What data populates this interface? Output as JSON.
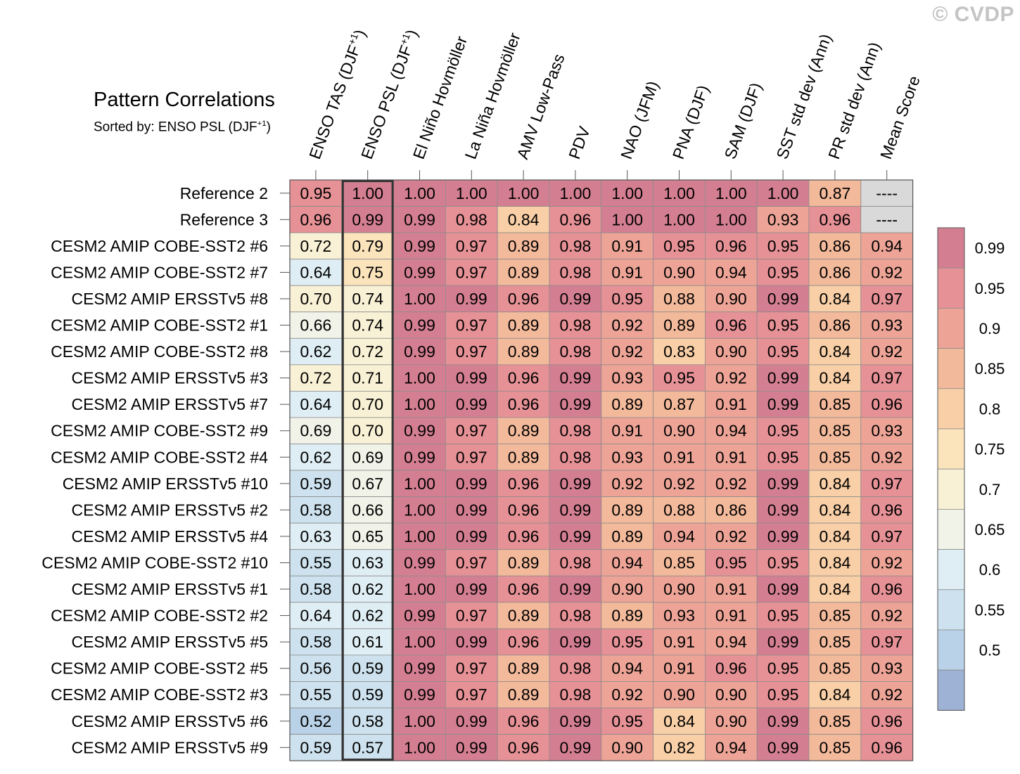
{
  "watermark": "© CVDP",
  "title": "Pattern Correlations",
  "subtitle": {
    "prefix": "Sorted by: ENSO PSL (DJF",
    "sup": "+1",
    "suffix": ")"
  },
  "chart_data": {
    "type": "heatmap",
    "title": "Pattern Correlations",
    "subtitle": "Sorted by: ENSO PSL (DJF+1)",
    "columns": [
      {
        "label": "ENSO TAS (DJF",
        "sup": "+1",
        "suffix": ")"
      },
      {
        "label": "ENSO PSL (DJF",
        "sup": "+1",
        "suffix": ")"
      },
      {
        "label": "El Niño Hovmöller"
      },
      {
        "label": "La Niña Hovmöller"
      },
      {
        "label": "AMV Low-Pass"
      },
      {
        "label": "PDV"
      },
      {
        "label": "NAO (JFM)"
      },
      {
        "label": "PNA (DJF)"
      },
      {
        "label": "SAM (DJF)"
      },
      {
        "label": "SST std dev (Ann)"
      },
      {
        "label": "PR std dev (Ann)"
      },
      {
        "label": "Mean Score"
      }
    ],
    "highlighted_column": 1,
    "rows": [
      {
        "label": "Reference 2",
        "values": [
          0.95,
          1.0,
          1.0,
          1.0,
          1.0,
          1.0,
          1.0,
          1.0,
          1.0,
          1.0,
          0.87,
          null
        ]
      },
      {
        "label": "Reference 3",
        "values": [
          0.96,
          0.99,
          0.99,
          0.98,
          0.84,
          0.96,
          1.0,
          1.0,
          1.0,
          0.93,
          0.96,
          null
        ]
      },
      {
        "label": "CESM2 AMIP COBE-SST2 #6",
        "values": [
          0.72,
          0.79,
          0.99,
          0.97,
          0.89,
          0.98,
          0.91,
          0.95,
          0.96,
          0.95,
          0.86,
          0.94
        ]
      },
      {
        "label": "CESM2 AMIP COBE-SST2 #7",
        "values": [
          0.64,
          0.75,
          0.99,
          0.97,
          0.89,
          0.98,
          0.91,
          0.9,
          0.94,
          0.95,
          0.86,
          0.92
        ]
      },
      {
        "label": "CESM2 AMIP ERSSTv5 #8",
        "values": [
          0.7,
          0.74,
          1.0,
          0.99,
          0.96,
          0.99,
          0.95,
          0.88,
          0.9,
          0.99,
          0.84,
          0.97
        ]
      },
      {
        "label": "CESM2 AMIP COBE-SST2 #1",
        "values": [
          0.66,
          0.74,
          0.99,
          0.97,
          0.89,
          0.98,
          0.92,
          0.89,
          0.96,
          0.95,
          0.86,
          0.93
        ]
      },
      {
        "label": "CESM2 AMIP COBE-SST2 #8",
        "values": [
          0.62,
          0.72,
          0.99,
          0.97,
          0.89,
          0.98,
          0.92,
          0.83,
          0.9,
          0.95,
          0.84,
          0.92
        ]
      },
      {
        "label": "CESM2 AMIP ERSSTv5 #3",
        "values": [
          0.72,
          0.71,
          1.0,
          0.99,
          0.96,
          0.99,
          0.93,
          0.95,
          0.92,
          0.99,
          0.84,
          0.97
        ]
      },
      {
        "label": "CESM2 AMIP ERSSTv5 #7",
        "values": [
          0.64,
          0.7,
          1.0,
          0.99,
          0.96,
          0.99,
          0.89,
          0.87,
          0.91,
          0.99,
          0.85,
          0.96
        ]
      },
      {
        "label": "CESM2 AMIP COBE-SST2 #9",
        "values": [
          0.69,
          0.7,
          0.99,
          0.97,
          0.89,
          0.98,
          0.91,
          0.9,
          0.94,
          0.95,
          0.85,
          0.93
        ]
      },
      {
        "label": "CESM2 AMIP COBE-SST2 #4",
        "values": [
          0.62,
          0.69,
          0.99,
          0.97,
          0.89,
          0.98,
          0.93,
          0.91,
          0.91,
          0.95,
          0.85,
          0.92
        ]
      },
      {
        "label": "CESM2 AMIP ERSSTv5 #10",
        "values": [
          0.59,
          0.67,
          1.0,
          0.99,
          0.96,
          0.99,
          0.92,
          0.92,
          0.92,
          0.99,
          0.84,
          0.97
        ]
      },
      {
        "label": "CESM2 AMIP ERSSTv5 #2",
        "values": [
          0.58,
          0.66,
          1.0,
          0.99,
          0.96,
          0.99,
          0.89,
          0.88,
          0.86,
          0.99,
          0.84,
          0.96
        ]
      },
      {
        "label": "CESM2 AMIP ERSSTv5 #4",
        "values": [
          0.63,
          0.65,
          1.0,
          0.99,
          0.96,
          0.99,
          0.89,
          0.94,
          0.92,
          0.99,
          0.84,
          0.97
        ]
      },
      {
        "label": "CESM2 AMIP COBE-SST2 #10",
        "values": [
          0.55,
          0.63,
          0.99,
          0.97,
          0.89,
          0.98,
          0.94,
          0.85,
          0.95,
          0.95,
          0.84,
          0.92
        ]
      },
      {
        "label": "CESM2 AMIP ERSSTv5 #1",
        "values": [
          0.58,
          0.62,
          1.0,
          0.99,
          0.96,
          0.99,
          0.9,
          0.9,
          0.91,
          0.99,
          0.84,
          0.96
        ]
      },
      {
        "label": "CESM2 AMIP COBE-SST2 #2",
        "values": [
          0.64,
          0.62,
          0.99,
          0.97,
          0.89,
          0.98,
          0.89,
          0.93,
          0.91,
          0.95,
          0.85,
          0.92
        ]
      },
      {
        "label": "CESM2 AMIP ERSSTv5 #5",
        "values": [
          0.58,
          0.61,
          1.0,
          0.99,
          0.96,
          0.99,
          0.95,
          0.91,
          0.94,
          0.99,
          0.85,
          0.97
        ]
      },
      {
        "label": "CESM2 AMIP COBE-SST2 #5",
        "values": [
          0.56,
          0.59,
          0.99,
          0.97,
          0.89,
          0.98,
          0.94,
          0.91,
          0.96,
          0.95,
          0.85,
          0.93
        ]
      },
      {
        "label": "CESM2 AMIP COBE-SST2 #3",
        "values": [
          0.55,
          0.59,
          0.99,
          0.97,
          0.89,
          0.98,
          0.92,
          0.9,
          0.9,
          0.95,
          0.84,
          0.92
        ]
      },
      {
        "label": "CESM2 AMIP ERSSTv5 #6",
        "values": [
          0.52,
          0.58,
          1.0,
          0.99,
          0.96,
          0.99,
          0.95,
          0.84,
          0.9,
          0.99,
          0.85,
          0.96
        ]
      },
      {
        "label": "CESM2 AMIP ERSSTv5 #9",
        "values": [
          0.59,
          0.57,
          1.0,
          0.99,
          0.96,
          0.99,
          0.9,
          0.82,
          0.94,
          0.99,
          0.85,
          0.96
        ]
      }
    ],
    "missing_label": "----",
    "missing_color": "#d9d9d9",
    "colorbar": {
      "labels": [
        "0.99",
        "0.95",
        "0.9",
        "0.85",
        "0.8",
        "0.75",
        "0.7",
        "0.65",
        "0.6",
        "0.55",
        "0.5"
      ],
      "levels": [
        0.99,
        0.95,
        0.9,
        0.85,
        0.8,
        0.75,
        0.7,
        0.65,
        0.6,
        0.55,
        0.5
      ],
      "colors": [
        "#d47f91",
        "#e69196",
        "#eda497",
        "#f3b99b",
        "#f8cfa6",
        "#fbe3bc",
        "#f9f1d5",
        "#f1f2e8",
        "#dfeef4",
        "#cde2ee",
        "#b9d2e7",
        "#9eb2d5"
      ]
    }
  }
}
